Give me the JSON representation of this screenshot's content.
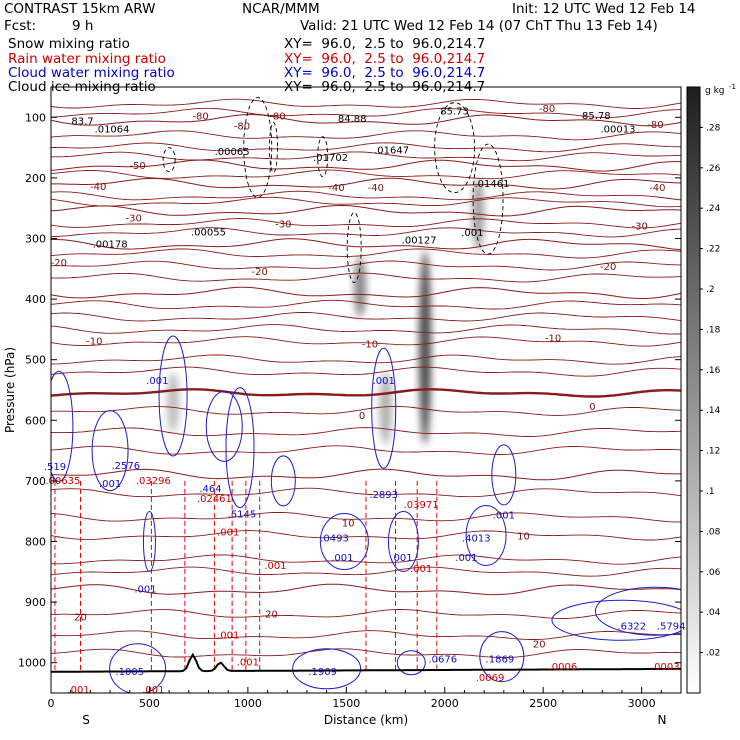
{
  "header": {
    "model": "CONTRAST 15km ARW",
    "org": "NCAR/MMM",
    "init": "Init: 12 UTC Wed 12 Feb 14",
    "fcst_label": "Fcst:",
    "fcst_value": "9 h",
    "valid": "Valid: 21 UTC Wed 12 Feb 14 (07 ChT Thu 13 Feb 14)",
    "fields": [
      {
        "name": "Snow mixing ratio",
        "xy": "XY=  96.0,  2.5 to  96.0,214.7",
        "color": "#000000"
      },
      {
        "name": "Rain water mixing ratio",
        "xy": "XY=  96.0,  2.5 to  96.0,214.7",
        "color": "#cc0000"
      },
      {
        "name": "Cloud water mixing ratio",
        "xy": "XY=  96.0,  2.5 to  96.0,214.7",
        "color": "#0000cc"
      },
      {
        "name": "Cloud ice mixing ratio",
        "xy": "XY=  96.0,  2.5 to  96.0,214.7",
        "color": "#000000"
      }
    ]
  },
  "chart_data": {
    "type": "contour",
    "xlabel": "Distance (km)",
    "ylabel": "Pressure (hPa)",
    "xlim": [
      0,
      3200
    ],
    "ylim": [
      1050,
      50
    ],
    "x_ticks": [
      0,
      500,
      1000,
      1500,
      2000,
      2500,
      3000
    ],
    "y_ticks": [
      100,
      200,
      300,
      400,
      500,
      600,
      700,
      800,
      900,
      1000
    ],
    "x_end_labels": {
      "left": "S",
      "right": "N"
    },
    "colorbar": {
      "unit": "g kg",
      "unit_exp": "-1",
      "ticks": [
        ".02",
        ".04",
        ".06",
        ".08",
        ".1",
        ".12",
        ".14",
        ".16",
        ".18",
        ".2",
        ".22",
        ".24",
        ".26",
        ".28"
      ],
      "range": [
        0,
        0.3
      ]
    },
    "temperature_isotherms": [
      {
        "label": "-80",
        "p": 105
      },
      {
        "label": "-50",
        "p": 180
      },
      {
        "label": "-40",
        "p": 210
      },
      {
        "label": "-30",
        "p": 255
      },
      {
        "label": "-20",
        "p": 310
      },
      {
        "label": "-10",
        "p": 390
      },
      {
        "label": "0",
        "p": 555,
        "bold": true
      },
      {
        "label": "10",
        "p": 690
      },
      {
        "label": "20",
        "p": 880
      }
    ],
    "isotherm_labels": [
      {
        "text": "-80",
        "x": 760,
        "p": 104
      },
      {
        "text": "-80",
        "x": 1150,
        "p": 104
      },
      {
        "text": "-80",
        "x": 2520,
        "p": 91
      },
      {
        "text": "-80",
        "x": 3070,
        "p": 118
      },
      {
        "text": "-80",
        "x": 970,
        "p": 120
      },
      {
        "text": "-50",
        "x": 440,
        "p": 185
      },
      {
        "text": "-40",
        "x": 240,
        "p": 220
      },
      {
        "text": "-40",
        "x": 1450,
        "p": 222
      },
      {
        "text": "-40",
        "x": 1650,
        "p": 222
      },
      {
        "text": "-40",
        "x": 3080,
        "p": 222
      },
      {
        "text": "-30",
        "x": 420,
        "p": 272
      },
      {
        "text": "-30",
        "x": 1180,
        "p": 282
      },
      {
        "text": "-30",
        "x": 2990,
        "p": 285
      },
      {
        "text": "-20",
        "x": 40,
        "p": 345
      },
      {
        "text": "-20",
        "x": 1060,
        "p": 360
      },
      {
        "text": "-20",
        "x": 2830,
        "p": 352
      },
      {
        "text": "-10",
        "x": 220,
        "p": 475
      },
      {
        "text": "-10",
        "x": 1620,
        "p": 480
      },
      {
        "text": "-10",
        "x": 2550,
        "p": 470
      },
      {
        "text": "0",
        "x": 1580,
        "p": 598
      },
      {
        "text": "0",
        "x": 2750,
        "p": 583
      },
      {
        "text": "10",
        "x": 1510,
        "p": 775
      },
      {
        "text": "10",
        "x": 2400,
        "p": 797
      },
      {
        "text": "20",
        "x": 150,
        "p": 930
      },
      {
        "text": "20",
        "x": 1120,
        "p": 925
      },
      {
        "text": "20",
        "x": 2480,
        "p": 975
      }
    ],
    "ice_maxima": [
      {
        "text": "83.7",
        "x": 160,
        "p": 112
      },
      {
        "text": ".01064",
        "x": 310,
        "p": 125
      },
      {
        "text": ".00065",
        "x": 920,
        "p": 162
      },
      {
        "text": "84.88",
        "x": 1530,
        "p": 108
      },
      {
        "text": ".01702",
        "x": 1420,
        "p": 172
      },
      {
        "text": ".01647",
        "x": 1730,
        "p": 160
      },
      {
        "text": "85.73",
        "x": 2050,
        "p": 95
      },
      {
        "text": "85.78",
        "x": 2770,
        "p": 103
      },
      {
        "text": ".00013",
        "x": 2880,
        "p": 125
      },
      {
        "text": ".01461",
        "x": 2240,
        "p": 215
      },
      {
        "text": ".00178",
        "x": 300,
        "p": 315
      },
      {
        "text": ".00055",
        "x": 800,
        "p": 295
      },
      {
        "text": ".00127",
        "x": 1870,
        "p": 308
      },
      {
        "text": ".001",
        "x": 2140,
        "p": 296
      }
    ],
    "cloud_water_labels": [
      {
        "text": ".001",
        "x": 540,
        "p": 540
      },
      {
        "text": ".519",
        "x": 20,
        "p": 682
      },
      {
        "text": ".2576",
        "x": 380,
        "p": 680
      },
      {
        "text": ".001",
        "x": 300,
        "p": 710
      },
      {
        "text": ".464",
        "x": 810,
        "p": 718
      },
      {
        "text": ".5145",
        "x": 970,
        "p": 760
      },
      {
        "text": ".001",
        "x": 1690,
        "p": 540
      },
      {
        "text": ".2893",
        "x": 1690,
        "p": 728
      },
      {
        "text": ".0493",
        "x": 1440,
        "p": 800
      },
      {
        "text": ".001",
        "x": 1480,
        "p": 832
      },
      {
        "text": ".001",
        "x": 1780,
        "p": 832
      },
      {
        "text": ".4013",
        "x": 2160,
        "p": 800
      },
      {
        "text": ".001",
        "x": 2110,
        "p": 832
      },
      {
        "text": ".001",
        "x": 2300,
        "p": 762
      },
      {
        "text": ".001",
        "x": 480,
        "p": 884
      },
      {
        "text": ".1005",
        "x": 400,
        "p": 1020
      },
      {
        "text": ".1909",
        "x": 1380,
        "p": 1020
      },
      {
        "text": ".0676",
        "x": 1990,
        "p": 1000
      },
      {
        "text": ".1869",
        "x": 2280,
        "p": 1000
      },
      {
        "text": ".6322",
        "x": 2950,
        "p": 945
      },
      {
        "text": ".5794",
        "x": 3150,
        "p": 945
      }
    ],
    "rain_labels": [
      {
        "text": ".00635",
        "x": 60,
        "p": 705
      },
      {
        "text": ".03296",
        "x": 520,
        "p": 705
      },
      {
        "text": ".02461",
        "x": 830,
        "p": 735
      },
      {
        "text": ".001",
        "x": 900,
        "p": 790
      },
      {
        "text": ".001",
        "x": 1140,
        "p": 845
      },
      {
        "text": ".03971",
        "x": 1880,
        "p": 745
      },
      {
        "text": ".001",
        "x": 1880,
        "p": 850
      },
      {
        "text": ".001",
        "x": 900,
        "p": 960
      },
      {
        "text": ".001",
        "x": 1000,
        "p": 1005
      },
      {
        "text": ".001",
        "x": 140,
        "p": 1050
      },
      {
        "text": ".001",
        "x": 520,
        "p": 1050
      },
      {
        "text": ".0069",
        "x": 2230,
        "p": 1030
      },
      {
        "text": ".0006",
        "x": 2600,
        "p": 1012
      },
      {
        "text": ".0003",
        "x": 3120,
        "p": 1012
      }
    ],
    "snow_shading": [
      {
        "x": 1570,
        "p_top": 330,
        "p_bot": 430,
        "peak": 0.18
      },
      {
        "x": 1900,
        "p_top": 320,
        "p_bot": 640,
        "peak": 0.27
      },
      {
        "x": 2170,
        "p_top": 200,
        "p_bot": 320,
        "peak": 0.14
      },
      {
        "x": 620,
        "p_top": 520,
        "p_bot": 620,
        "peak": 0.1
      },
      {
        "x": 1700,
        "p_top": 520,
        "p_bot": 640,
        "peak": 0.12
      }
    ],
    "terrain": {
      "peaks_km": [
        720,
        860
      ],
      "peak_p": 988
    }
  }
}
